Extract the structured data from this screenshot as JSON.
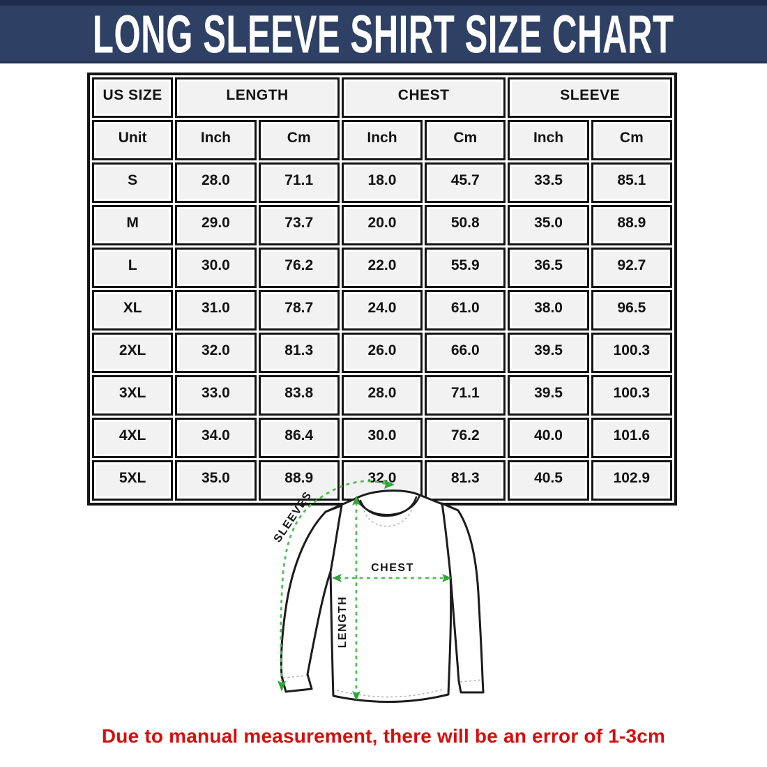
{
  "banner": {
    "title": "LONG SLEEVE SHIRT SIZE CHART",
    "bg_color": "#2e4164",
    "top_strip_color": "#1f2c4b",
    "text_color": "#ffffff"
  },
  "table": {
    "groups": [
      {
        "label": "US SIZE",
        "span": 1
      },
      {
        "label": "LENGTH",
        "span": 2
      },
      {
        "label": "CHEST",
        "span": 2
      },
      {
        "label": "SLEEVE",
        "span": 2
      }
    ],
    "units": [
      "Unit",
      "Inch",
      "Cm",
      "Inch",
      "Cm",
      "Inch",
      "Cm"
    ],
    "rows": [
      {
        "size": "S",
        "values": [
          "28.0",
          "71.1",
          "18.0",
          "45.7",
          "33.5",
          "85.1"
        ]
      },
      {
        "size": "M",
        "values": [
          "29.0",
          "73.7",
          "20.0",
          "50.8",
          "35.0",
          "88.9"
        ]
      },
      {
        "size": "L",
        "values": [
          "30.0",
          "76.2",
          "22.0",
          "55.9",
          "36.5",
          "92.7"
        ]
      },
      {
        "size": "XL",
        "values": [
          "31.0",
          "78.7",
          "24.0",
          "61.0",
          "38.0",
          "96.5"
        ]
      },
      {
        "size": "2XL",
        "values": [
          "32.0",
          "81.3",
          "26.0",
          "66.0",
          "39.5",
          "100.3"
        ]
      },
      {
        "size": "3XL",
        "values": [
          "33.0",
          "83.8",
          "28.0",
          "71.1",
          "39.5",
          "100.3"
        ]
      },
      {
        "size": "4XL",
        "values": [
          "34.0",
          "86.4",
          "30.0",
          "76.2",
          "40.0",
          "101.6"
        ]
      },
      {
        "size": "5XL",
        "values": [
          "35.0",
          "88.9",
          "32.0",
          "81.3",
          "40.5",
          "102.9"
        ]
      }
    ]
  },
  "diagram": {
    "labels": {
      "sleeves": "SLEEVES",
      "chest": "CHEST",
      "length": "LENGTH"
    },
    "dash_color": "#55bb58",
    "arrow_color": "#33a63a"
  },
  "note": {
    "text": "Due to manual measurement, there will be an error of 1-3cm",
    "color": "#d60e0e"
  }
}
